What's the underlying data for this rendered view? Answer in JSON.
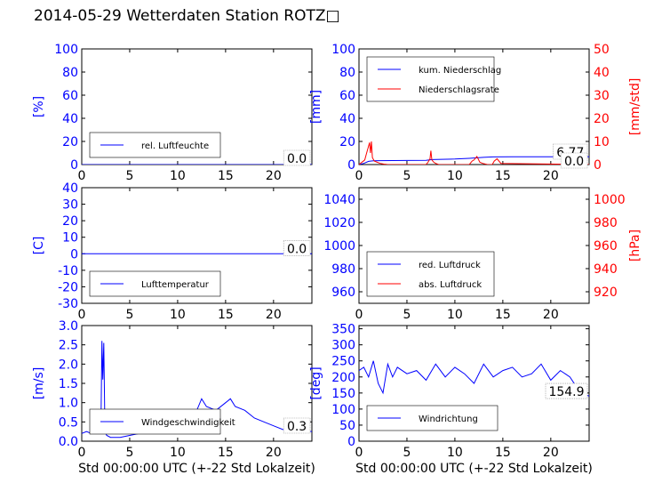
{
  "title": "2014-05-29 Wetterdaten Station ROTZ□",
  "colors": {
    "primary": "#0000ff",
    "secondary": "#ff0000",
    "axis": "#000000",
    "background": "#ffffff"
  },
  "chart_data": [
    {
      "id": "humidity",
      "type": "line",
      "xlim": [
        0,
        24
      ],
      "xticks": [
        0,
        5,
        10,
        15,
        20
      ],
      "ylim": [
        0,
        100
      ],
      "yticks": [
        0,
        20,
        40,
        60,
        80,
        100
      ],
      "ylabel": "[%]",
      "legend": [
        "rel. Luftfeuchte"
      ],
      "legend_position": "lower-left",
      "value_box": "0.0",
      "series": [
        {
          "name": "rel. Luftfeuchte",
          "color": "#0000ff",
          "x": [
            0,
            24
          ],
          "y": [
            0,
            0
          ]
        }
      ]
    },
    {
      "id": "precipitation",
      "type": "line",
      "xlim": [
        0,
        24
      ],
      "xticks": [
        0,
        5,
        10,
        15,
        20
      ],
      "ylim": [
        0,
        100
      ],
      "yticks": [
        0,
        20,
        40,
        60,
        80,
        100
      ],
      "ylabel": "[mm]",
      "y2lim": [
        0,
        50
      ],
      "y2ticks": [
        0,
        10,
        20,
        30,
        40,
        50
      ],
      "y2label": "[mm/std]",
      "legend": [
        "kum. Niederschlag",
        "Niederschlagsrate"
      ],
      "legend_position": "upper-left",
      "value_box": "6.77",
      "value_box2": "0.0",
      "series": [
        {
          "name": "kum. Niederschlag",
          "color": "#0000ff",
          "axis": "left",
          "x": [
            0,
            0.5,
            1.0,
            1.5,
            2.0,
            5.0,
            7.0,
            7.6,
            10.0,
            11.5,
            12.5,
            13.0,
            14.0,
            16.0,
            20.0,
            22.0,
            24.0
          ],
          "y": [
            0,
            1.0,
            2.8,
            3.3,
            3.4,
            3.5,
            3.6,
            4.3,
            4.8,
            5.4,
            5.9,
            6.2,
            6.6,
            6.72,
            6.77,
            6.77,
            6.77
          ]
        },
        {
          "name": "Niederschlagsrate",
          "color": "#ff0000",
          "axis": "right",
          "x": [
            0,
            0.6,
            0.8,
            1.0,
            1.1,
            1.2,
            1.3,
            1.4,
            1.6,
            1.9,
            2.2,
            2.6,
            3.0,
            7.0,
            7.2,
            7.4,
            7.5,
            7.6,
            7.8,
            8.0,
            8.3,
            11.5,
            11.8,
            12.0,
            12.3,
            12.6,
            12.9,
            13.4,
            13.9,
            14.1,
            14.4,
            14.8,
            24.0
          ],
          "y": [
            0,
            2.0,
            5.0,
            8.0,
            9.5,
            5.0,
            10.0,
            3.0,
            1.5,
            1.0,
            0.5,
            0.2,
            0,
            0,
            1.0,
            2.5,
            6.0,
            2.0,
            1.0,
            0.5,
            0,
            0,
            1.5,
            2.0,
            3.5,
            1.0,
            0.5,
            0,
            0,
            1.5,
            2.5,
            0.5,
            0
          ]
        }
      ]
    },
    {
      "id": "temperature",
      "type": "line",
      "xlim": [
        0,
        24
      ],
      "xticks": [
        0,
        5,
        10,
        15,
        20
      ],
      "ylim": [
        -30,
        40
      ],
      "yticks": [
        -30,
        -20,
        -10,
        0,
        10,
        20,
        30,
        40
      ],
      "ylabel": "[C]",
      "legend": [
        "Lufttemperatur"
      ],
      "legend_position": "lower-left",
      "value_box": "0.0",
      "series": [
        {
          "name": "Lufttemperatur",
          "color": "#0000ff",
          "x": [
            0,
            24
          ],
          "y": [
            0,
            0
          ]
        }
      ]
    },
    {
      "id": "pressure",
      "type": "line",
      "xlim": [
        0,
        24
      ],
      "xticks": [
        0,
        5,
        10,
        15,
        20
      ],
      "ylim": [
        950,
        1050
      ],
      "yticks": [
        960,
        980,
        1000,
        1020,
        1040
      ],
      "ylabel": "",
      "y2lim": [
        910,
        1010
      ],
      "y2ticks": [
        920,
        940,
        960,
        980,
        1000
      ],
      "y2label": "[hPa]",
      "legend": [
        "red. Luftdruck",
        "abs. Luftdruck"
      ],
      "legend_position": "lower-left",
      "series": []
    },
    {
      "id": "windspeed",
      "type": "line",
      "xlim": [
        0,
        24
      ],
      "xticks": [
        0,
        5,
        10,
        15,
        20
      ],
      "ylim": [
        0,
        3
      ],
      "yticks": [
        0.0,
        0.5,
        1.0,
        1.5,
        2.0,
        2.5,
        3.0
      ],
      "ylabel": "[m/s]",
      "xlabel": "Std 00:00:00 UTC (+-22 Std Lokalzeit)",
      "legend": [
        "Windgeschwindigkeit"
      ],
      "legend_position": "lower-left",
      "value_box": "0.3",
      "series": [
        {
          "name": "Windgeschwindigkeit",
          "color": "#0000ff",
          "x": [
            0,
            0.5,
            1.0,
            1.5,
            2.0,
            2.1,
            2.2,
            2.3,
            2.4,
            2.5,
            2.6,
            3.0,
            4.0,
            5.0,
            6.0,
            7.0,
            8.0,
            9.0,
            10.0,
            11.0,
            12.0,
            12.5,
            13.0,
            14.0,
            15.0,
            15.5,
            16.0,
            17.0,
            18.0,
            19.0,
            20.0,
            21.0,
            22.0,
            23.0,
            24.0
          ],
          "y": [
            0.2,
            0.25,
            0.2,
            0.3,
            0.4,
            2.6,
            1.6,
            2.55,
            0.6,
            0.2,
            0.15,
            0.1,
            0.1,
            0.15,
            0.2,
            0.3,
            0.4,
            0.5,
            0.6,
            0.7,
            0.8,
            1.1,
            0.9,
            0.8,
            1.0,
            1.1,
            0.9,
            0.8,
            0.6,
            0.5,
            0.4,
            0.3,
            0.35,
            0.3,
            0.25
          ]
        }
      ]
    },
    {
      "id": "winddirection",
      "type": "line",
      "xlim": [
        0,
        24
      ],
      "xticks": [
        0,
        5,
        10,
        15,
        20
      ],
      "ylim": [
        0,
        360
      ],
      "yticks": [
        0,
        50,
        100,
        150,
        200,
        250,
        300,
        350
      ],
      "ylabel": "[deg]",
      "xlabel": "Std 00:00:00 UTC (+-22 Std Lokalzeit)",
      "legend": [
        "Windrichtung"
      ],
      "legend_position": "lower-left",
      "value_box": "154.9",
      "series": [
        {
          "name": "Windrichtung",
          "color": "#0000ff",
          "x": [
            0,
            0.5,
            1.0,
            1.5,
            2.0,
            2.5,
            3.0,
            3.5,
            4.0,
            5.0,
            6.0,
            7.0,
            8.0,
            9.0,
            10.0,
            11.0,
            12.0,
            13.0,
            14.0,
            15.0,
            16.0,
            17.0,
            18.0,
            19.0,
            20.0,
            21.0,
            22.0,
            23.0,
            24.0
          ],
          "y": [
            220,
            230,
            200,
            250,
            180,
            150,
            240,
            200,
            230,
            210,
            220,
            190,
            240,
            200,
            230,
            210,
            180,
            240,
            200,
            220,
            230,
            200,
            210,
            240,
            190,
            220,
            200,
            154.9,
            140
          ]
        }
      ]
    }
  ]
}
